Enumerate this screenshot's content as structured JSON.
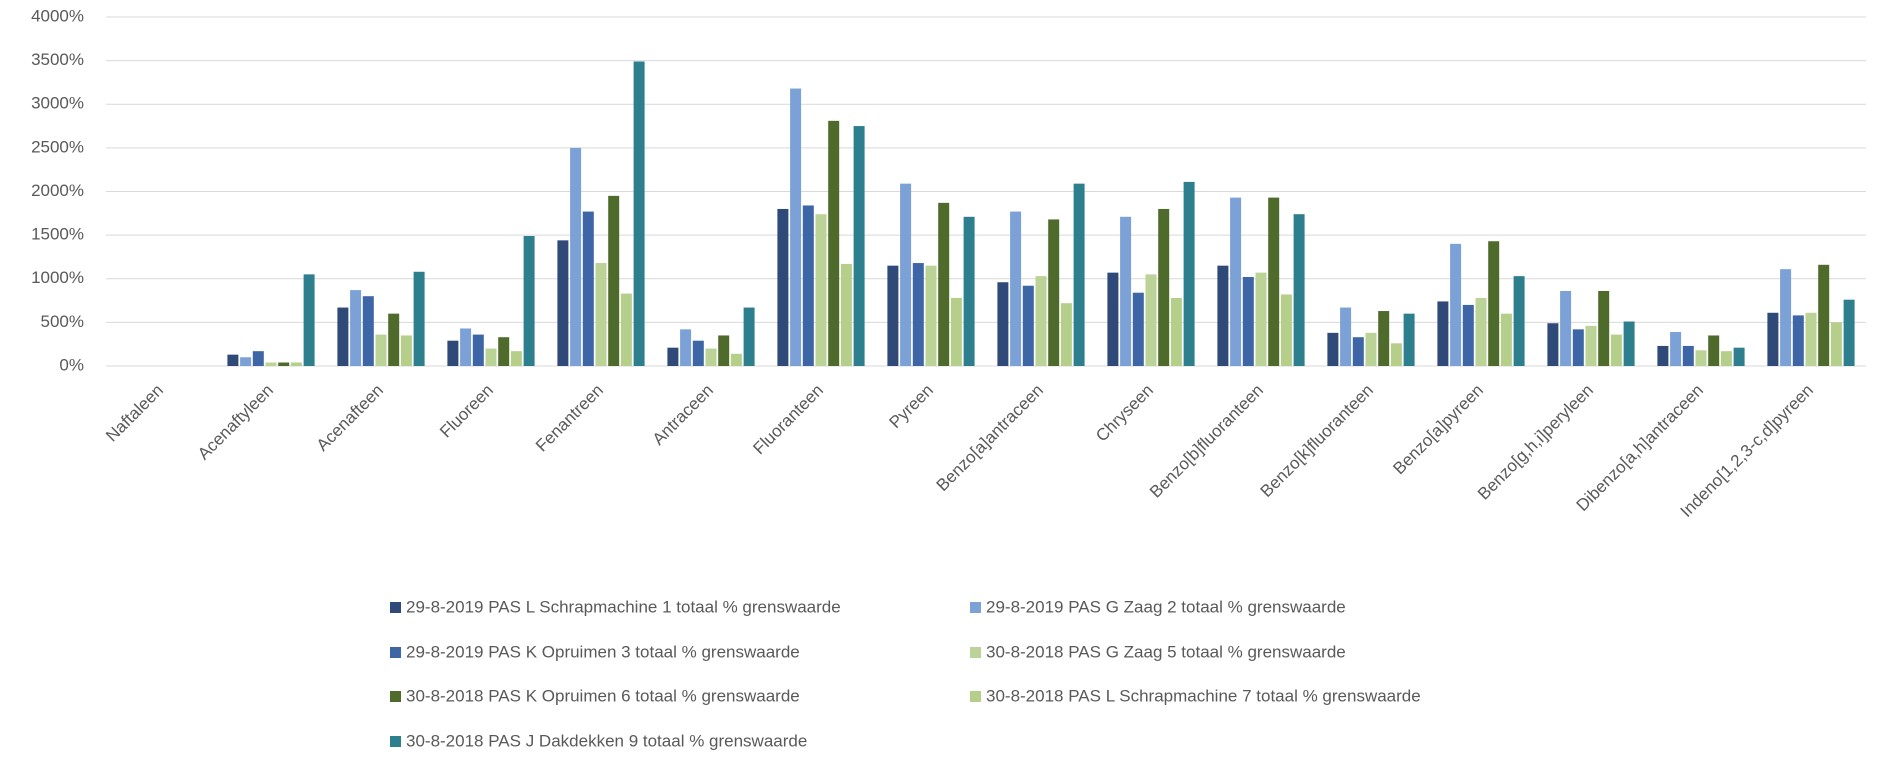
{
  "chart_data": {
    "type": "bar",
    "categories": [
      "Naftaleen",
      "Acenaftyleen",
      "Acenafteen",
      "Fluoreen",
      "Fenantreen",
      "Antraceen",
      "Fluoranteen",
      "Pyreen",
      "Benzo[a]antraceen",
      "Chryseen",
      "Benzo[b]fluoranteen",
      "Benzo[k]fluoranteen",
      "Benzo[a]pyreen",
      "Benzo[g,h,i]peryleen",
      "Dibenzo[a,h]antraceen",
      "Indeno[1,2,3-c,d]pyreen"
    ],
    "series": [
      {
        "name": "29-8-2019 PAS L Schrapmachine 1 totaal % grenswaarde",
        "color": "#2f4a78",
        "values": [
          0,
          130,
          670,
          290,
          1440,
          210,
          1800,
          1150,
          960,
          1070,
          1150,
          380,
          740,
          490,
          230,
          610
        ]
      },
      {
        "name": "29-8-2019 PAS G Zaag 2 totaal % grenswaarde",
        "color": "#7ba1d6",
        "values": [
          0,
          100,
          870,
          430,
          2500,
          420,
          3180,
          2090,
          1770,
          1710,
          1930,
          670,
          1400,
          860,
          390,
          1110
        ]
      },
      {
        "name": "29-8-2019 PAS K Opruimen 3 totaal % grenswaarde",
        "color": "#3e66a6",
        "values": [
          0,
          170,
          800,
          360,
          1770,
          290,
          1840,
          1180,
          920,
          840,
          1020,
          330,
          700,
          420,
          230,
          580
        ]
      },
      {
        "name": "30-8-2018 PAS G Zaag 5 totaal % grenswaarde",
        "color": "#bcd397",
        "values": [
          0,
          40,
          360,
          200,
          1180,
          200,
          1740,
          1150,
          1030,
          1050,
          1070,
          380,
          780,
          460,
          180,
          610
        ]
      },
      {
        "name": "30-8-2018 PAS K Opruimen 6 totaal % grenswaarde",
        "color": "#4f6b2c",
        "values": [
          0,
          40,
          600,
          330,
          1950,
          350,
          2810,
          1870,
          1680,
          1800,
          1930,
          630,
          1430,
          860,
          350,
          1160
        ]
      },
      {
        "name": "30-8-2018 PAS L Schrapmachine 7 totaal % grenswaarde",
        "color": "#b5cf8a",
        "values": [
          0,
          40,
          350,
          170,
          830,
          140,
          1170,
          780,
          720,
          780,
          820,
          260,
          600,
          360,
          170,
          500
        ]
      },
      {
        "name": "30-8-2018 PAS J Dakdekken 9 totaal % grenswaarde",
        "color": "#2e7f8e",
        "values": [
          0,
          1050,
          1080,
          1490,
          3490,
          670,
          2750,
          1710,
          2090,
          2110,
          1740,
          600,
          1030,
          510,
          210,
          760
        ]
      }
    ],
    "ylim": [
      0,
      4000
    ],
    "yticks": [
      {
        "value": 0,
        "label": "0%"
      },
      {
        "value": 500,
        "label": "500%"
      },
      {
        "value": 1000,
        "label": "1000%"
      },
      {
        "value": 1500,
        "label": "1500%"
      },
      {
        "value": 2000,
        "label": "2000%"
      },
      {
        "value": 2500,
        "label": "2500%"
      },
      {
        "value": 3000,
        "label": "3000%"
      },
      {
        "value": 3500,
        "label": "3500%"
      },
      {
        "value": 4000,
        "label": "4000%"
      }
    ],
    "grid": true,
    "legend": "bottom"
  }
}
